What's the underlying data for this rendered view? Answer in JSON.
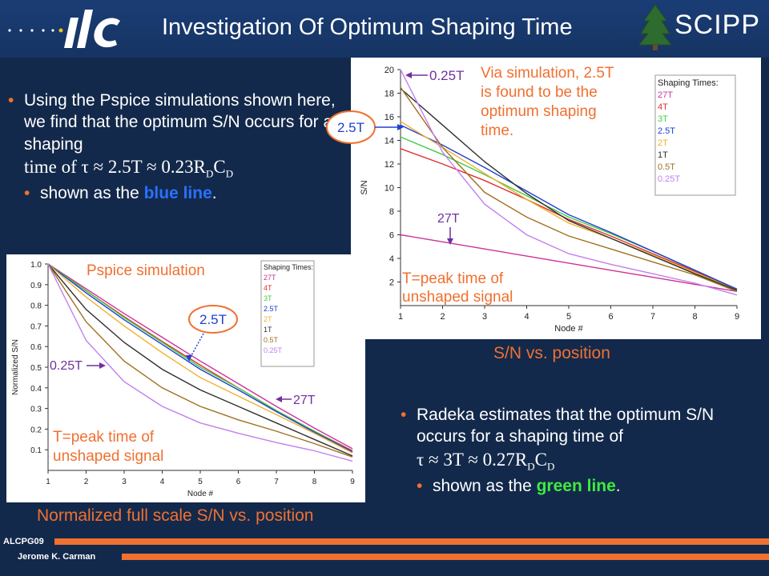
{
  "title": "Investigation Of Optimum Shaping Time",
  "logo_left": "ilc",
  "logo_right": "SCIPP",
  "bullet1": {
    "text": "Using the Pspice simulations shown here, we find that the optimum S/N occurs for a shaping",
    "formula": "time of τ ≈ 2.5T ≈ 0.23RDCD",
    "sub_prefix": "shown as the ",
    "sub_highlight": "blue line",
    "sub_suffix": "."
  },
  "bullet2": {
    "text": "Radeka estimates that the optimum S/N occurs for a shaping time of",
    "formula": "τ ≈ 3T ≈ 0.27RDCD",
    "sub_prefix": "shown as the ",
    "sub_highlight": "green line",
    "sub_suffix": "."
  },
  "captions": {
    "right": "S/N vs. position",
    "left": "Normalized full scale S/N vs. position"
  },
  "footer": {
    "conference": "ALCPG09",
    "author": "Jerome K. Carman"
  },
  "colors": {
    "27T": "#cc3399",
    "4T": "#e03030",
    "3T": "#44cc44",
    "2.5T": "#2040d0",
    "2T": "#f0b030",
    "1T": "#303030",
    "0.5T": "#a07020",
    "0.25T": "#c080ee",
    "accent": "#f07030",
    "arrow": "#7030a0",
    "background": "#13294b"
  },
  "chart_data": [
    {
      "type": "line",
      "title": "",
      "xlabel": "Node #",
      "ylabel": "S/N",
      "xlim": [
        1,
        9
      ],
      "ylim": [
        0,
        20
      ],
      "x_ticks": [
        1,
        2,
        3,
        4,
        5,
        6,
        7,
        8,
        9
      ],
      "y_ticks": [
        2,
        4,
        6,
        8,
        10,
        12,
        14,
        16,
        18,
        20
      ],
      "grid": false,
      "legend_title": "Shaping Times:",
      "legend_position": "top-right",
      "x": [
        1,
        2,
        3,
        4,
        5,
        6,
        7,
        8,
        9
      ],
      "series": [
        {
          "name": "27T",
          "values": [
            6.0,
            5.4,
            4.8,
            4.2,
            3.6,
            3.0,
            2.4,
            1.8,
            1.2
          ]
        },
        {
          "name": "4T",
          "values": [
            13.3,
            12.0,
            10.6,
            9.0,
            7.3,
            5.9,
            4.4,
            2.9,
            1.4
          ]
        },
        {
          "name": "3T",
          "values": [
            14.3,
            12.8,
            11.1,
            9.3,
            7.5,
            6.1,
            4.6,
            3.0,
            1.4
          ]
        },
        {
          "name": "2.5T",
          "values": [
            15.3,
            13.6,
            11.7,
            9.7,
            7.7,
            6.2,
            4.6,
            3.0,
            1.4
          ]
        },
        {
          "name": "2T",
          "values": [
            15.6,
            13.4,
            11.2,
            9.0,
            7.0,
            5.7,
            4.3,
            2.8,
            1.3
          ]
        },
        {
          "name": "1T",
          "values": [
            18.4,
            15.3,
            12.2,
            9.5,
            7.2,
            5.7,
            4.2,
            2.7,
            1.3
          ]
        },
        {
          "name": "0.5T",
          "values": [
            18.5,
            13.4,
            9.6,
            7.5,
            5.9,
            4.8,
            3.7,
            2.6,
            1.2
          ]
        },
        {
          "name": "0.25T",
          "values": [
            20.0,
            13.0,
            8.6,
            6.0,
            4.4,
            3.5,
            2.7,
            1.9,
            0.9
          ]
        }
      ],
      "annotations": {
        "top_note": "Via simulation, 2.5T is found to be the optimum shaping time.",
        "label_025": "0.25T",
        "label_25": "2.5T",
        "label_27": "27T",
        "tnote_line1": "T=peak time of",
        "tnote_line2": "unshaped signal"
      }
    },
    {
      "type": "line",
      "title": "Pspice simulation",
      "xlabel": "Node #",
      "ylabel": "Normalized S/N",
      "xlim": [
        1,
        9
      ],
      "ylim": [
        0,
        1.0
      ],
      "x_ticks": [
        1,
        2,
        3,
        4,
        5,
        6,
        7,
        8,
        9
      ],
      "y_ticks": [
        0.1,
        0.2,
        0.3,
        0.4,
        0.5,
        0.6,
        0.7,
        0.8,
        0.9,
        1.0
      ],
      "grid": false,
      "legend_title": "Shaping Times:",
      "legend_position": "top-right",
      "x": [
        1,
        2,
        3,
        4,
        5,
        6,
        7,
        8,
        9
      ],
      "series": [
        {
          "name": "27T",
          "values": [
            1.0,
            0.88,
            0.76,
            0.645,
            0.53,
            0.42,
            0.31,
            0.205,
            0.105
          ]
        },
        {
          "name": "4T",
          "values": [
            1.0,
            0.87,
            0.745,
            0.625,
            0.51,
            0.4,
            0.29,
            0.19,
            0.095
          ]
        },
        {
          "name": "3T",
          "values": [
            1.0,
            0.87,
            0.74,
            0.62,
            0.5,
            0.4,
            0.29,
            0.19,
            0.09
          ]
        },
        {
          "name": "2.5T",
          "values": [
            1.0,
            0.86,
            0.73,
            0.61,
            0.49,
            0.39,
            0.285,
            0.185,
            0.09
          ]
        },
        {
          "name": "2T",
          "values": [
            1.0,
            0.84,
            0.7,
            0.57,
            0.45,
            0.36,
            0.27,
            0.18,
            0.085
          ]
        },
        {
          "name": "1T",
          "values": [
            1.0,
            0.78,
            0.62,
            0.49,
            0.39,
            0.31,
            0.23,
            0.15,
            0.07
          ]
        },
        {
          "name": "0.5T",
          "values": [
            1.0,
            0.72,
            0.53,
            0.4,
            0.31,
            0.245,
            0.19,
            0.13,
            0.065
          ]
        },
        {
          "name": "0.25T",
          "values": [
            1.0,
            0.63,
            0.43,
            0.31,
            0.23,
            0.18,
            0.135,
            0.095,
            0.045
          ]
        }
      ],
      "annotations": {
        "label_025": "0.25T",
        "label_25": "2.5T",
        "label_27": "27T",
        "tnote_line1": "T=peak time of",
        "tnote_line2": "unshaped signal"
      }
    }
  ]
}
